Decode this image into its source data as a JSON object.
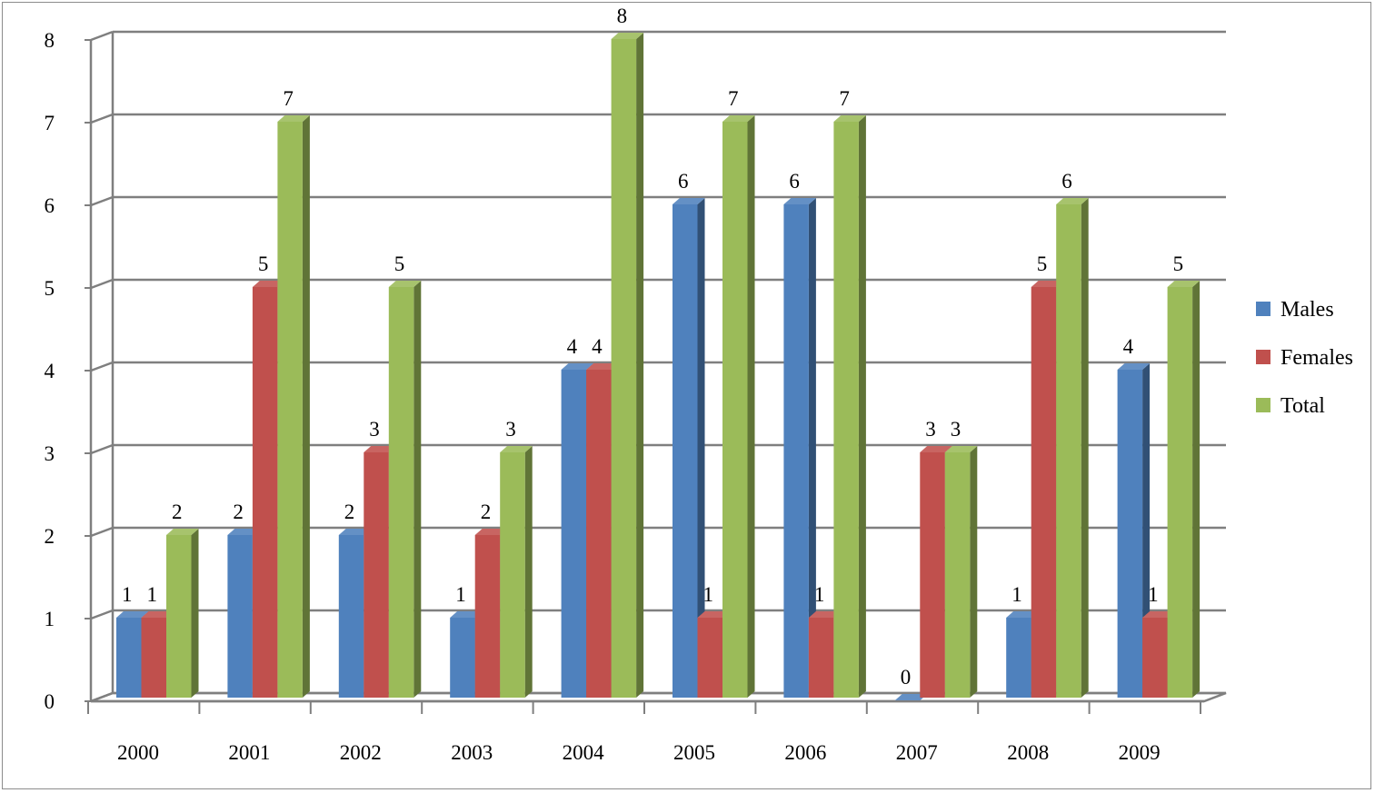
{
  "chart_data": {
    "type": "bar",
    "style": "3d-clustered-column",
    "categories": [
      "2000",
      "2001",
      "2002",
      "2003",
      "2004",
      "2005",
      "2006",
      "2007",
      "2008",
      "2009"
    ],
    "series": [
      {
        "name": "Males",
        "color": "#4f81bd",
        "values": [
          1,
          2,
          2,
          1,
          4,
          6,
          6,
          0,
          1,
          4
        ]
      },
      {
        "name": "Females",
        "color": "#c0504d",
        "values": [
          1,
          5,
          3,
          2,
          4,
          1,
          1,
          3,
          5,
          1
        ]
      },
      {
        "name": "Total",
        "color": "#9bbb59",
        "values": [
          2,
          7,
          5,
          3,
          8,
          7,
          7,
          3,
          6,
          5
        ]
      }
    ],
    "yticks": [
      0,
      1,
      2,
      3,
      4,
      5,
      6,
      7,
      8
    ],
    "ylim": [
      0,
      8
    ],
    "grid": true,
    "data_labels": true,
    "legend_position": "right",
    "title": "",
    "xlabel": "",
    "ylabel": ""
  }
}
